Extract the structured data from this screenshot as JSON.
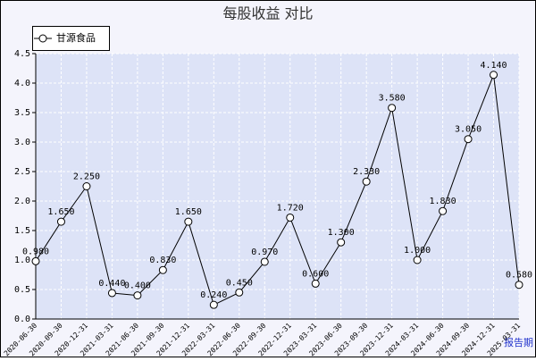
{
  "chart_data": {
    "type": "line",
    "title": "每股收益 对比",
    "x_label": "报告期",
    "categories": [
      "2020-06-30",
      "2020-09-30",
      "2020-12-31",
      "2021-03-31",
      "2021-06-30",
      "2021-09-30",
      "2021-12-31",
      "2022-03-31",
      "2022-06-30",
      "2022-09-30",
      "2022-12-31",
      "2023-03-31",
      "2023-06-30",
      "2023-09-30",
      "2023-12-31",
      "2024-03-31",
      "2024-06-30",
      "2024-09-30",
      "2024-12-31",
      "2025-03-31"
    ],
    "series": [
      {
        "name": "甘源食品",
        "color": "#000000",
        "values": [
          0.98,
          1.65,
          2.25,
          0.44,
          0.4,
          0.83,
          1.65,
          0.24,
          0.45,
          0.97,
          1.72,
          0.6,
          1.3,
          2.33,
          3.58,
          1.0,
          1.83,
          3.05,
          4.14,
          0.58
        ],
        "value_labels": [
          "0.980",
          "1.650",
          "2.250",
          "0.440",
          "0.400",
          "0.830",
          "1.650",
          "0.240",
          "0.450",
          "0.970",
          "1.720",
          "0.600",
          "1.300",
          "2.330",
          "3.580",
          "1.000",
          "1.830",
          "3.050",
          "4.140",
          "0.580"
        ]
      }
    ],
    "ylim": [
      0,
      4.5
    ],
    "yticks": [
      {
        "value": 0,
        "label": "0.0"
      },
      0.5,
      {
        "value": 1,
        "label": "1.0"
      },
      1.5,
      {
        "value": 2,
        "label": "2.0"
      },
      2.5,
      {
        "value": 3,
        "label": "3.0"
      },
      3.5,
      {
        "value": 4,
        "label": "4.0"
      },
      4.5
    ],
    "grid": true
  }
}
